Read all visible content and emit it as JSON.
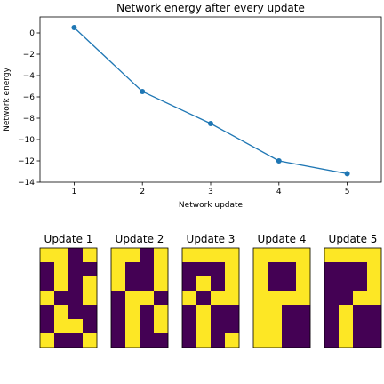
{
  "colors": {
    "line": "#1f77b4",
    "on": "#fde725",
    "off": "#440154",
    "axis": "#000000"
  },
  "chart_data": [
    {
      "type": "line",
      "title": "Network energy after every update",
      "xlabel": "Network update",
      "ylabel": "Network energy",
      "x": [
        1,
        2,
        3,
        4,
        5
      ],
      "y": [
        0.5,
        -5.5,
        -8.5,
        -12.0,
        -13.2
      ],
      "xticks": [
        1,
        2,
        3,
        4,
        5
      ],
      "yticks": [
        0,
        -2,
        -4,
        -6,
        -8,
        -10,
        -12,
        -14
      ],
      "xlim": [
        0.5,
        5.5
      ],
      "ylim": [
        -14,
        1.5
      ],
      "grid": false,
      "marker": "circle"
    },
    {
      "type": "heatmap",
      "panels": [
        {
          "title": "Update 1",
          "grid": [
            [
              1,
              1,
              0,
              1
            ],
            [
              0,
              1,
              0,
              0
            ],
            [
              0,
              1,
              0,
              1
            ],
            [
              1,
              0,
              0,
              1
            ],
            [
              0,
              1,
              0,
              0
            ],
            [
              0,
              1,
              1,
              0
            ],
            [
              1,
              0,
              0,
              1
            ]
          ]
        },
        {
          "title": "Update 2",
          "grid": [
            [
              1,
              1,
              0,
              1
            ],
            [
              1,
              0,
              0,
              1
            ],
            [
              1,
              0,
              0,
              1
            ],
            [
              0,
              1,
              1,
              0
            ],
            [
              0,
              1,
              0,
              1
            ],
            [
              0,
              1,
              0,
              1
            ],
            [
              0,
              1,
              0,
              0
            ]
          ]
        },
        {
          "title": "Update 3",
          "grid": [
            [
              1,
              1,
              1,
              1
            ],
            [
              0,
              0,
              0,
              1
            ],
            [
              0,
              1,
              0,
              1
            ],
            [
              1,
              0,
              1,
              1
            ],
            [
              0,
              1,
              0,
              0
            ],
            [
              0,
              1,
              0,
              0
            ],
            [
              0,
              1,
              0,
              1
            ]
          ]
        },
        {
          "title": "Update 4",
          "grid": [
            [
              1,
              1,
              1,
              1
            ],
            [
              1,
              0,
              0,
              1
            ],
            [
              1,
              0,
              0,
              1
            ],
            [
              1,
              1,
              1,
              1
            ],
            [
              1,
              1,
              0,
              0
            ],
            [
              1,
              1,
              0,
              0
            ],
            [
              1,
              1,
              0,
              0
            ]
          ]
        },
        {
          "title": "Update 5",
          "grid": [
            [
              1,
              1,
              1,
              1
            ],
            [
              0,
              0,
              0,
              1
            ],
            [
              0,
              0,
              0,
              1
            ],
            [
              0,
              0,
              1,
              1
            ],
            [
              0,
              1,
              0,
              0
            ],
            [
              0,
              1,
              0,
              0
            ],
            [
              0,
              1,
              0,
              0
            ]
          ]
        }
      ]
    }
  ]
}
